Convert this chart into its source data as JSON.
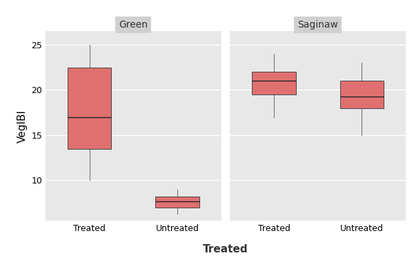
{
  "panels": [
    "Green",
    "Saginaw"
  ],
  "categories": [
    "Treated",
    "Untreated"
  ],
  "box_data": {
    "Green": {
      "Treated": {
        "whislo": 10.0,
        "q1": 13.5,
        "med": 17.0,
        "q3": 22.5,
        "whishi": 25.0
      },
      "Untreated": {
        "whislo": 6.3,
        "q1": 7.0,
        "med": 7.7,
        "q3": 8.2,
        "whishi": 9.0
      }
    },
    "Saginaw": {
      "Treated": {
        "whislo": 17.0,
        "q1": 19.5,
        "med": 21.0,
        "q3": 22.0,
        "whishi": 24.0
      },
      "Untreated": {
        "whislo": 15.0,
        "q1": 18.0,
        "med": 19.3,
        "q3": 21.0,
        "whishi": 23.0
      }
    }
  },
  "box_color": "#E07070",
  "box_edge_color": "#444444",
  "median_color": "#222222",
  "whisker_color": "#777777",
  "plot_bg_color": "#E8E8E8",
  "outer_bg_color": "#FFFFFF",
  "strip_bg_color": "#D0D0D0",
  "strip_text_color": "#333333",
  "grid_color": "#FFFFFF",
  "ylabel": "VegIBI",
  "xlabel": "Treated",
  "ylim": [
    5.5,
    26.5
  ],
  "yticks": [
    10,
    15,
    20,
    25
  ],
  "strip_fontsize": 10,
  "label_fontsize": 11,
  "tick_fontsize": 9,
  "box_width": 0.5
}
